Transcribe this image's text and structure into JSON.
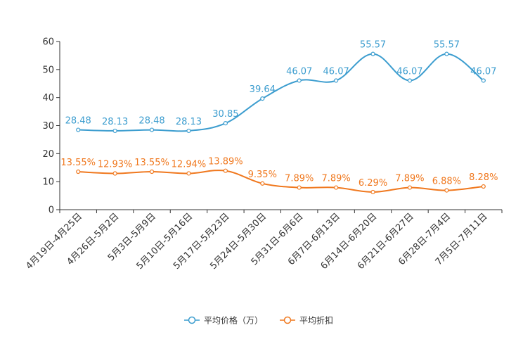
{
  "chart_data": {
    "type": "line",
    "title": "",
    "xlabel": "",
    "ylabel": "",
    "ylim": [
      0,
      60
    ],
    "yticks": [
      "0",
      "10",
      "20",
      "30",
      "40",
      "50",
      "60"
    ],
    "grid": false,
    "legend_position": "bottom-center",
    "categories": [
      "4月19日-4月25日",
      "4月26日-5月2日",
      "5月3日-5月9日",
      "5月10日-5月16日",
      "5月17日-5月23日",
      "5月24日-5月30日",
      "5月31日-6月6日",
      "6月7日-6月13日",
      "6月14日-6月20日",
      "6月21日-6月27日",
      "6月28日-7月4日",
      "7月5日-7月11日"
    ],
    "series": [
      {
        "name": "平均价格（万）",
        "color": "#3c9dcf",
        "values": [
          28.48,
          28.13,
          28.48,
          28.13,
          30.85,
          39.64,
          46.07,
          46.07,
          55.57,
          46.07,
          55.57,
          46.07
        ],
        "labels": [
          "28.48",
          "28.13",
          "28.48",
          "28.13",
          "30.85",
          "39.64",
          "46.07",
          "46.07",
          "55.57",
          "46.07",
          "55.57",
          "46.07"
        ]
      },
      {
        "name": "平均折扣",
        "color": "#f0781e",
        "values": [
          13.55,
          12.93,
          13.55,
          12.94,
          13.89,
          9.35,
          7.89,
          7.89,
          6.29,
          7.89,
          6.88,
          8.28
        ],
        "labels": [
          "13.55%",
          "12.93%",
          "13.55%",
          "12.94%",
          "13.89%",
          "9.35%",
          "7.89%",
          "7.89%",
          "6.29%",
          "7.89%",
          "6.88%",
          "8.28%"
        ]
      }
    ]
  }
}
